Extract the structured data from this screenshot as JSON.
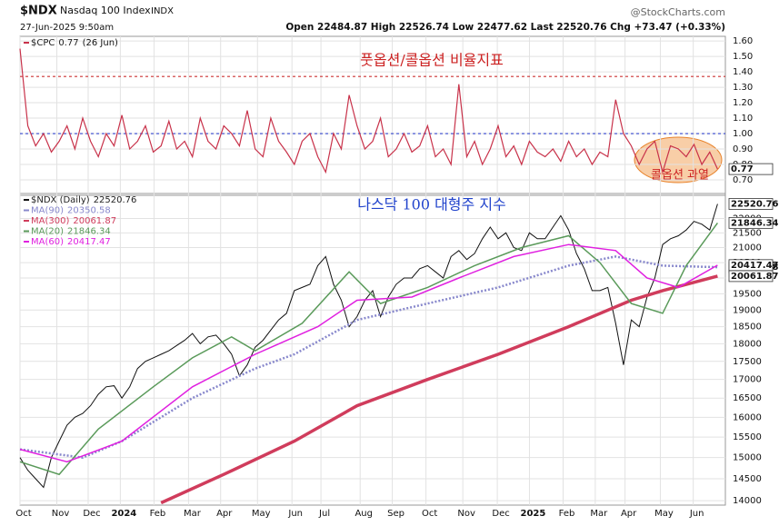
{
  "header": {
    "symbol": "$NDX",
    "name": "Nasdaq 100 Index",
    "exchange": "INDX",
    "date": "27-Jun-2025 9:50am",
    "quote": "Open 22484.87  High 22526.74  Low 22477.62  Last 22520.76  Chg +73.47 (+0.33%)",
    "source": "@StockCharts.com"
  },
  "chart_data": [
    {
      "type": "line",
      "annotation": "풋옵션/콜옵션 비율지표",
      "callout": "콜옵션 과열",
      "xlim": [
        0,
        90
      ],
      "ylim": [
        0.6,
        1.63
      ],
      "yticks": [
        {
          "value": 0.7,
          "label": "0.70"
        },
        {
          "value": 0.8,
          "label": "0.80"
        },
        {
          "value": 0.9,
          "label": "0.90"
        },
        {
          "value": 1.0,
          "label": "1.00"
        },
        {
          "value": 1.1,
          "label": "1.10"
        },
        {
          "value": 1.2,
          "label": "1.20"
        },
        {
          "value": 1.3,
          "label": "1.30"
        },
        {
          "value": 1.4,
          "label": "1.40"
        },
        {
          "value": 1.5,
          "label": "1.50"
        },
        {
          "value": 1.6,
          "label": "1.60"
        }
      ],
      "hlines": [
        {
          "value": 1.37,
          "color": "#cc3333"
        },
        {
          "value": 1.0,
          "color": "#3344cc"
        }
      ],
      "x": [
        0,
        1,
        2,
        3,
        4,
        5,
        6,
        7,
        8,
        9,
        10,
        11,
        12,
        13,
        14,
        15,
        16,
        17,
        18,
        19,
        20,
        21,
        22,
        23,
        24,
        25,
        26,
        27,
        28,
        29,
        30,
        31,
        32,
        33,
        34,
        35,
        36,
        37,
        38,
        39,
        40,
        41,
        42,
        43,
        44,
        45,
        46,
        47,
        48,
        49,
        50,
        51,
        52,
        53,
        54,
        55,
        56,
        57,
        58,
        59,
        60,
        61,
        62,
        63,
        64,
        65,
        66,
        67,
        68,
        69,
        70,
        71,
        72,
        73,
        74,
        75,
        76,
        77,
        78,
        79,
        80,
        81,
        82,
        83,
        84,
        85,
        86,
        87,
        88,
        89
      ],
      "series": [
        {
          "name": "$CPC",
          "last": 0.77,
          "date": "(26 Jun)",
          "color": "#c8324a",
          "values": [
            1.55,
            1.05,
            0.92,
            1.0,
            0.88,
            0.95,
            1.05,
            0.9,
            1.1,
            0.95,
            0.85,
            1.0,
            0.92,
            1.12,
            0.9,
            0.95,
            1.05,
            0.88,
            0.92,
            1.08,
            0.9,
            0.95,
            0.85,
            1.1,
            0.95,
            0.9,
            1.05,
            1.0,
            0.92,
            1.15,
            0.9,
            0.85,
            1.1,
            0.95,
            0.88,
            0.8,
            0.95,
            1.0,
            0.85,
            0.75,
            1.0,
            0.9,
            1.25,
            1.05,
            0.9,
            0.95,
            1.1,
            0.85,
            0.9,
            1.0,
            0.88,
            0.92,
            1.05,
            0.85,
            0.9,
            0.8,
            1.32,
            0.85,
            0.95,
            0.8,
            0.9,
            1.05,
            0.85,
            0.92,
            0.8,
            0.95,
            0.88,
            0.85,
            0.9,
            0.82,
            0.95,
            0.85,
            0.9,
            0.8,
            0.88,
            0.85,
            1.22,
            1.0,
            0.92,
            0.8,
            0.9,
            0.95,
            0.75,
            0.92,
            0.9,
            0.85,
            0.93,
            0.8,
            0.88,
            0.77
          ]
        }
      ]
    },
    {
      "type": "line",
      "annotation": "나스닥 100 대형주 지수",
      "log": true,
      "xlim": [
        0,
        90
      ],
      "ylim": [
        13900,
        22900
      ],
      "yticks": [
        14000,
        14500,
        15000,
        15500,
        16000,
        16500,
        17000,
        17500,
        18000,
        18500,
        19000,
        19500,
        20000,
        20500,
        21000,
        21500,
        22000
      ],
      "xticks": [
        {
          "value": 0,
          "label": "Oct"
        },
        {
          "value": 4.7,
          "label": "Nov"
        },
        {
          "value": 8.7,
          "label": "Dec"
        },
        {
          "value": 12.8,
          "label": "2024"
        },
        {
          "value": 17.1,
          "label": "Feb"
        },
        {
          "value": 21.5,
          "label": "Mar"
        },
        {
          "value": 25.6,
          "label": "Apr"
        },
        {
          "value": 30.3,
          "label": "May"
        },
        {
          "value": 34.7,
          "label": "Jun"
        },
        {
          "value": 38.4,
          "label": "Jul"
        },
        {
          "value": 43.4,
          "label": "Aug"
        },
        {
          "value": 47.5,
          "label": "Sep"
        },
        {
          "value": 51.8,
          "label": "Oct"
        },
        {
          "value": 56.5,
          "label": "Nov"
        },
        {
          "value": 60.9,
          "label": "Dec"
        },
        {
          "value": 65.0,
          "label": "2025"
        },
        {
          "value": 69.3,
          "label": "Feb"
        },
        {
          "value": 73.4,
          "label": "Mar"
        },
        {
          "value": 77.2,
          "label": "Apr"
        },
        {
          "value": 81.7,
          "label": "May"
        },
        {
          "value": 85.9,
          "label": "Jun"
        }
      ],
      "x": [
        0,
        1,
        2,
        3,
        4,
        5,
        6,
        7,
        8,
        9,
        10,
        11,
        12,
        13,
        14,
        15,
        16,
        17,
        18,
        19,
        20,
        21,
        22,
        23,
        24,
        25,
        26,
        27,
        28,
        29,
        30,
        31,
        32,
        33,
        34,
        35,
        36,
        37,
        38,
        39,
        40,
        41,
        42,
        43,
        44,
        45,
        46,
        47,
        48,
        49,
        50,
        51,
        52,
        53,
        54,
        55,
        56,
        57,
        58,
        59,
        60,
        61,
        62,
        63,
        64,
        65,
        66,
        67,
        68,
        69,
        70,
        71,
        72,
        73,
        74,
        75,
        76,
        77,
        78,
        79,
        80,
        81,
        82,
        83,
        84,
        85,
        86,
        87,
        88,
        89
      ],
      "series": [
        {
          "name": "$NDX (Daily)",
          "last": 22520.76,
          "color": "#111111",
          "values": [
            15000,
            14700,
            14500,
            14300,
            15000,
            15400,
            15800,
            16000,
            16100,
            16300,
            16600,
            16800,
            16830,
            16500,
            16800,
            17300,
            17500,
            17600,
            17700,
            17800,
            17950,
            18100,
            18300,
            18000,
            18200,
            18250,
            18000,
            17700,
            17100,
            17400,
            17900,
            18100,
            18400,
            18700,
            18900,
            19600,
            19700,
            19800,
            20400,
            20700,
            19800,
            19300,
            18500,
            18800,
            19300,
            19600,
            18800,
            19400,
            19800,
            20000,
            20000,
            20300,
            20400,
            20200,
            20000,
            20700,
            20900,
            20600,
            20800,
            21300,
            21700,
            21300,
            21500,
            21000,
            20900,
            21500,
            21300,
            21300,
            21700,
            22100,
            21600,
            20800,
            20300,
            19600,
            19600,
            19700,
            18600,
            17400,
            18700,
            18500,
            19400,
            20000,
            21100,
            21300,
            21400,
            21600,
            21900,
            21800,
            21600,
            22520
          ]
        },
        {
          "name": "MA(90)",
          "last": 20350.58,
          "color": "#8888cc",
          "x": [
            0,
            8,
            13,
            22,
            30,
            35,
            43,
            52,
            61,
            70,
            76,
            82,
            89
          ],
          "values": [
            15200,
            15000,
            15400,
            16500,
            17300,
            17700,
            18700,
            19200,
            19700,
            20400,
            20700,
            20400,
            20351
          ]
        },
        {
          "name": "MA(300)",
          "last": 20061.87,
          "color": "#d03c5c",
          "x": [
            18,
            26,
            35,
            43,
            52,
            61,
            70,
            78,
            82,
            89
          ],
          "values": [
            13950,
            14600,
            15400,
            16300,
            17000,
            17700,
            18500,
            19300,
            19600,
            20062
          ]
        },
        {
          "name": "MA(20)",
          "last": 21846.34,
          "color": "#5a9a5a",
          "x": [
            0,
            5,
            10,
            17,
            22,
            27,
            30,
            36,
            42,
            46,
            52,
            58,
            64,
            70,
            74,
            78,
            82,
            85,
            89
          ],
          "values": [
            14900,
            14600,
            15700,
            16800,
            17600,
            18200,
            17800,
            18600,
            20200,
            19200,
            19700,
            20400,
            21000,
            21400,
            20500,
            19200,
            18900,
            20400,
            21846
          ]
        },
        {
          "name": "MA(60)",
          "last": 20417.47,
          "color": "#e020e0",
          "x": [
            0,
            6,
            13,
            22,
            30,
            38,
            43,
            50,
            56,
            63,
            70,
            76,
            80,
            84,
            89
          ],
          "values": [
            15200,
            14900,
            15400,
            16800,
            17700,
            18500,
            19300,
            19400,
            20000,
            20700,
            21100,
            20900,
            20000,
            19700,
            20417
          ]
        }
      ]
    }
  ]
}
